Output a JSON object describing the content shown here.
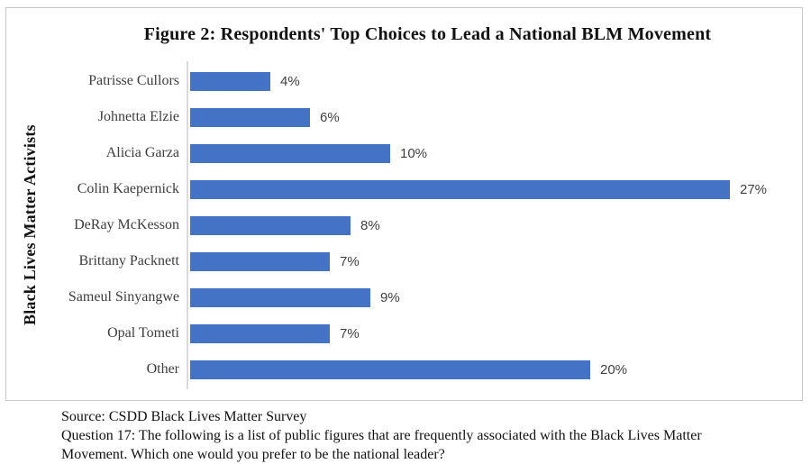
{
  "chart_data": {
    "type": "bar",
    "orientation": "horizontal",
    "title": "Figure 2: Respondents' Top Choices to Lead a National BLM Movement",
    "ylabel": "Black Lives Matter Activists",
    "xlabel": "",
    "categories": [
      "Patrisse Cullors",
      "Johnetta Elzie",
      "Alicia Garza",
      "Colin Kaepernick",
      "DeRay McKesson",
      "Brittany Packnett",
      "Sameul Sinyangwe",
      "Opal Tometi",
      "Other"
    ],
    "values": [
      4,
      6,
      10,
      27,
      8,
      7,
      9,
      7,
      20
    ],
    "value_labels": [
      "4%",
      "6%",
      "10%",
      "27%",
      "8%",
      "7%",
      "9%",
      "7%",
      "20%"
    ],
    "xlim": [
      0,
      30
    ],
    "grid": false,
    "legend_position": "none",
    "bar_color": "#4472C4",
    "axis_line_color": "#D9D9D9",
    "border_color": "#C9C9C9"
  },
  "footer": {
    "source": "Source: CSDD Black Lives Matter Survey",
    "question": "Question 17: The following is a list of public figures that are frequently associated with the Black Lives Matter Movement. Which one would you prefer to be the national leader?"
  }
}
